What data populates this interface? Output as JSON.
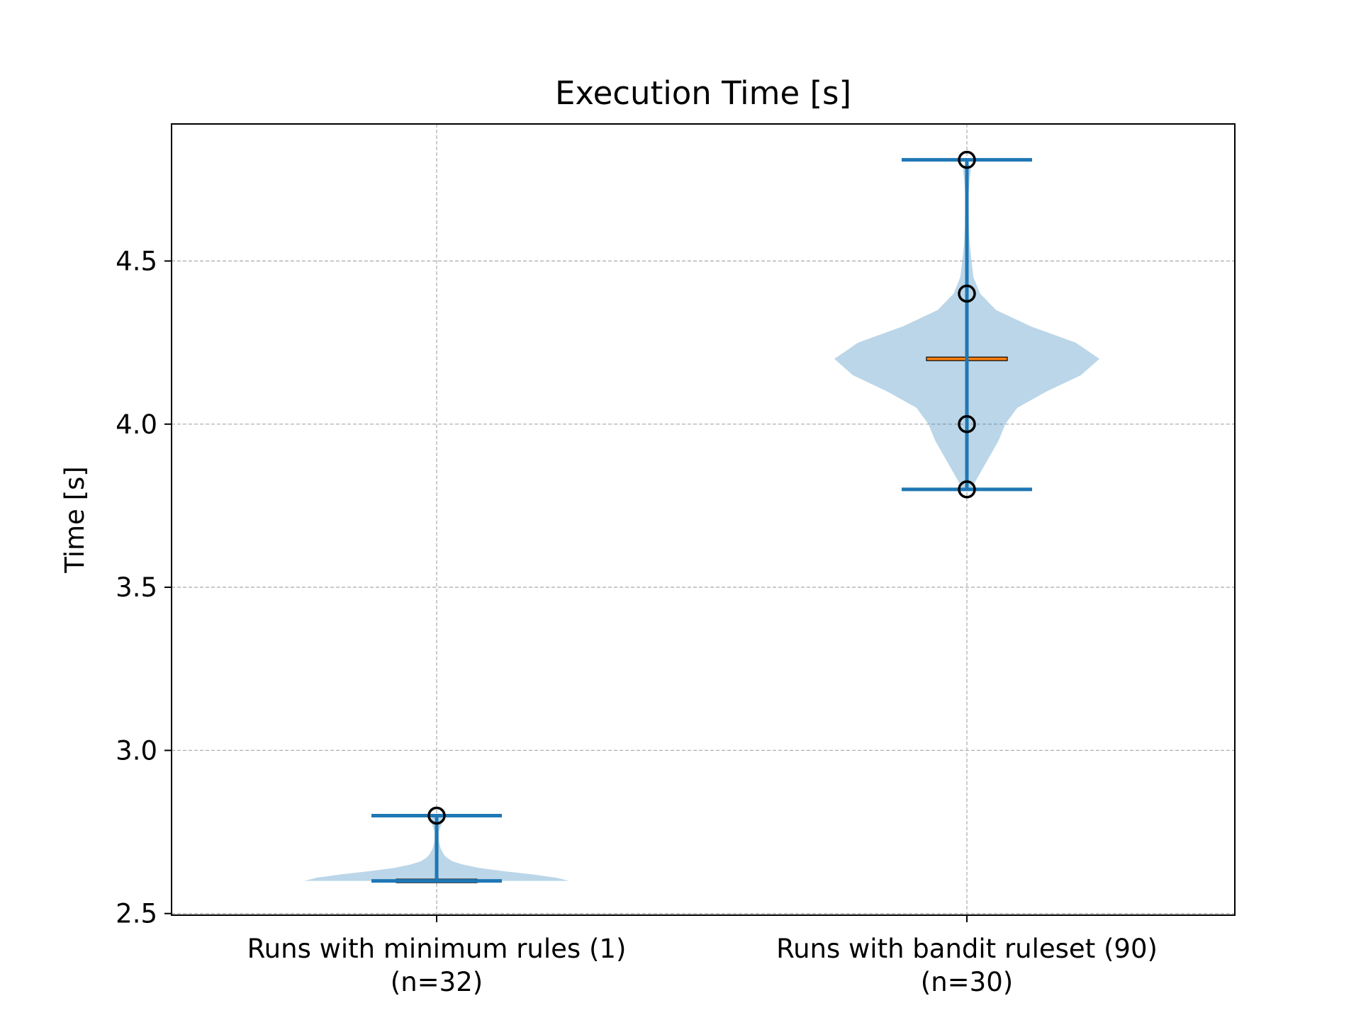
{
  "chart_data": {
    "type": "violin",
    "title": "Execution Time [s]",
    "ylabel": "Time [s]",
    "xlabel": "",
    "ylim": [
      2.495,
      4.92
    ],
    "yticks": [
      2.5,
      3.0,
      3.5,
      4.0,
      4.5
    ],
    "ytick_labels": [
      "2.5",
      "3.0",
      "3.5",
      "4.0",
      "4.5"
    ],
    "grid": true,
    "categories": [
      {
        "label": "Runs with minimum rules (1)",
        "sublabel": "(n=32)"
      },
      {
        "label": "Runs with bandit ruleset (90)",
        "sublabel": "(n=30)"
      }
    ],
    "series": [
      {
        "min": 2.6,
        "max": 2.8,
        "median": 2.6,
        "points": [
          2.8
        ],
        "density": [
          [
            2.6,
            1.0
          ],
          [
            2.61,
            0.9
          ],
          [
            2.62,
            0.72
          ],
          [
            2.63,
            0.5
          ],
          [
            2.64,
            0.32
          ],
          [
            2.65,
            0.2
          ],
          [
            2.66,
            0.12
          ],
          [
            2.67,
            0.08
          ],
          [
            2.68,
            0.055
          ],
          [
            2.7,
            0.03
          ],
          [
            2.72,
            0.018
          ],
          [
            2.75,
            0.016
          ],
          [
            2.77,
            0.032
          ],
          [
            2.785,
            0.05
          ],
          [
            2.795,
            0.04
          ],
          [
            2.8,
            0.0
          ]
        ]
      },
      {
        "min": 3.8,
        "max": 4.81,
        "median": 4.2,
        "points": [
          3.8,
          4.0,
          4.4,
          4.81
        ],
        "density": [
          [
            3.8,
            0.03
          ],
          [
            3.85,
            0.1
          ],
          [
            3.9,
            0.17
          ],
          [
            3.95,
            0.24
          ],
          [
            4.0,
            0.29
          ],
          [
            4.05,
            0.38
          ],
          [
            4.1,
            0.6
          ],
          [
            4.15,
            0.86
          ],
          [
            4.2,
            1.0
          ],
          [
            4.25,
            0.82
          ],
          [
            4.3,
            0.48
          ],
          [
            4.35,
            0.22
          ],
          [
            4.4,
            0.1
          ],
          [
            4.45,
            0.05
          ],
          [
            4.5,
            0.035
          ],
          [
            4.55,
            0.022
          ],
          [
            4.6,
            0.015
          ],
          [
            4.7,
            0.012
          ],
          [
            4.75,
            0.02
          ],
          [
            4.78,
            0.03
          ],
          [
            4.81,
            0.0
          ]
        ]
      }
    ],
    "colors": {
      "body": "#1f77b4",
      "body_alpha": 0.3,
      "lines": "#1f77b4",
      "median": "#ff7f0e",
      "point_edge": "#000000",
      "grid": "#b0b0b0"
    }
  }
}
